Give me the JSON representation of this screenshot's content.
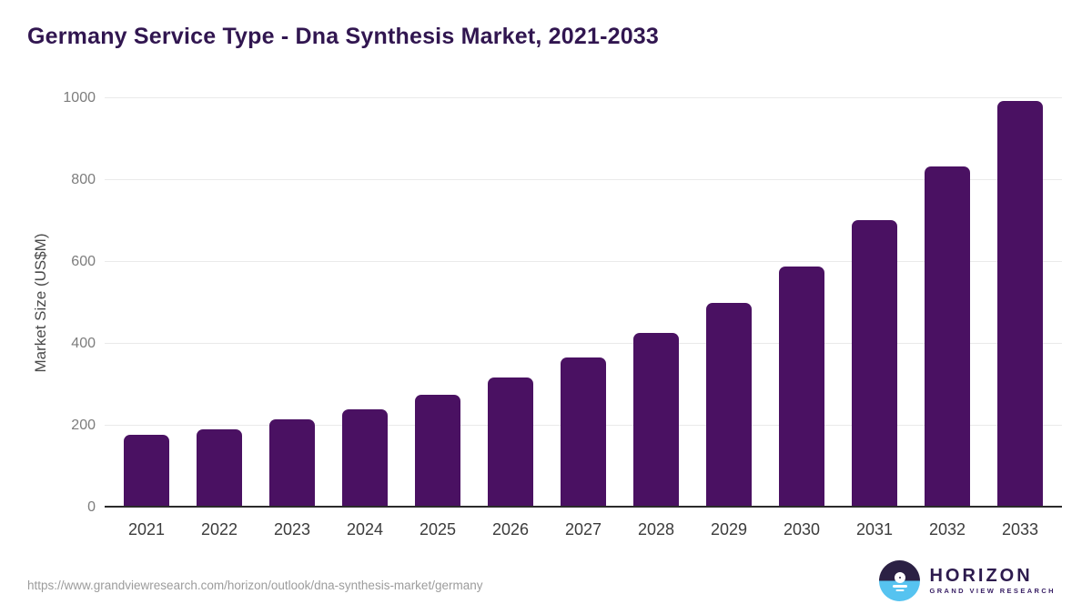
{
  "title": "Germany Service Type - Dna Synthesis Market, 2021-2033",
  "footer": {
    "source_url": "https://www.grandviewresearch.com/horizon/outlook/dna-synthesis-market/germany",
    "logo": {
      "name": "HORIZON",
      "subtitle": "GRAND VIEW RESEARCH"
    }
  },
  "colors": {
    "bar": "#4a1162",
    "title_text": "#311650",
    "gridline": "#eaeaea",
    "axis_line": "#2b2b2b",
    "y_tick_text": "#7d7d7d",
    "x_tick_text": "#3c3c3c",
    "url_text": "#9c9c9c",
    "logo_dark": "#2b2144",
    "logo_blue": "#56c3f0"
  },
  "chart_data": {
    "type": "bar",
    "title": "Germany Service Type - Dna Synthesis Market, 2021-2033",
    "categories": [
      "2021",
      "2022",
      "2023",
      "2024",
      "2025",
      "2026",
      "2027",
      "2028",
      "2029",
      "2030",
      "2031",
      "2032",
      "2033"
    ],
    "values": [
      177,
      192,
      215,
      241,
      275,
      317,
      367,
      427,
      499,
      589,
      702,
      833,
      993
    ],
    "xlabel": "",
    "ylabel": "Market Size (US$M)",
    "ylim": [
      0,
      1000
    ],
    "y_ticks": [
      0,
      200,
      400,
      600,
      800,
      1000
    ],
    "grid": "horizontal",
    "legend": "none",
    "bar_color": "#4a1162"
  }
}
